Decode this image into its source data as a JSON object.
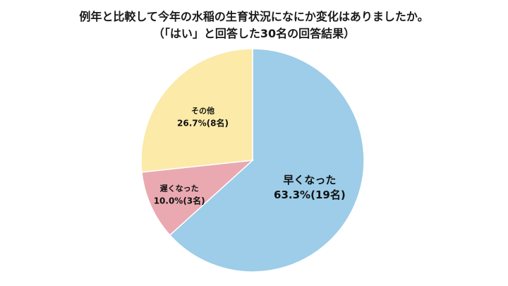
{
  "title_line1": "例年と比較して今年の水稲の生育状況になにか変化はありましたか。",
  "title_line2": "（「はい」と回答した30名の回答結果）",
  "chart_data": {
    "type": "pie",
    "title": "例年と比較して今年の水稲の生育状況になにか変化はありましたか。（「はい」と回答した30名の回答結果）",
    "start": "top, clockwise",
    "slices": [
      {
        "label": "早くなった",
        "value_text": "63.3%(19名)",
        "percent": 63.3,
        "count": 19,
        "color": "#9dcde8"
      },
      {
        "label": "遅くなった",
        "value_text": "10.0%(3名)",
        "percent": 10.0,
        "count": 3,
        "color": "#eaa9b1"
      },
      {
        "label": "その他",
        "value_text": "26.7%(8名)",
        "percent": 26.7,
        "count": 8,
        "color": "#fbeaa8"
      }
    ]
  }
}
